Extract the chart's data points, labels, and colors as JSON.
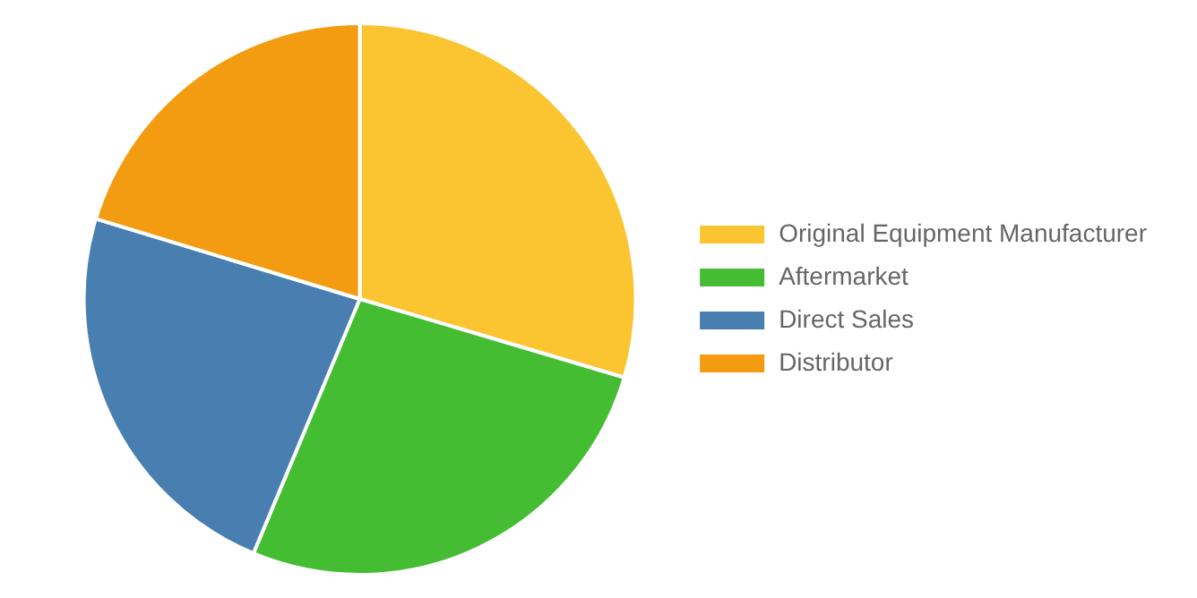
{
  "chart_data": {
    "type": "pie",
    "categories": [
      "Original Equipment Manufacturer",
      "Aftermarket",
      "Direct Sales",
      "Distributor"
    ],
    "values": [
      29.6,
      26.7,
      23.4,
      20.3
    ],
    "colors": [
      "#fbc531",
      "#44bd32",
      "#487eb0",
      "#f39c12"
    ],
    "legend": "right"
  }
}
